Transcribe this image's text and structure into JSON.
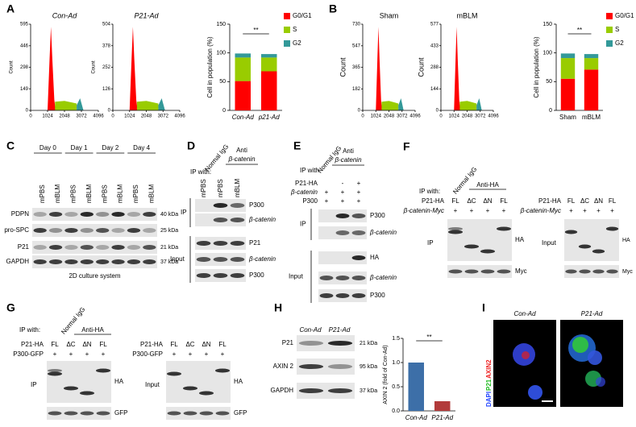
{
  "panels": {
    "A": {
      "label": "A",
      "histograms": [
        {
          "title": "Con-Ad",
          "ylabel": "Count",
          "ylim": [
            0,
            595
          ],
          "yticks": [
            0,
            149,
            298,
            446,
            595
          ],
          "xlim": [
            0,
            4096
          ],
          "xticks": [
            0,
            1024,
            2048,
            3072,
            4096
          ]
        },
        {
          "title": "P21-Ad",
          "ylabel": "Count",
          "ylim": [
            0,
            504
          ],
          "yticks": [
            0,
            126,
            252,
            378,
            504
          ],
          "xlim": [
            0,
            4096
          ],
          "xticks": [
            0,
            1024,
            2048,
            3072,
            4096
          ]
        }
      ],
      "bar": {
        "type": "bar",
        "ylabel": "Cell in population (%)",
        "categories": [
          "Con-Ad",
          "p21-Ad"
        ],
        "series": [
          {
            "name": "G0/G1",
            "color": "#ff0000",
            "values": [
              51,
              68
            ]
          },
          {
            "name": "S",
            "color": "#99cc00",
            "values": [
              41,
              24
            ]
          },
          {
            "name": "G2",
            "color": "#339999",
            "values": [
              7,
              6
            ]
          }
        ],
        "ylim": [
          0,
          150
        ],
        "yticks": [
          0,
          50,
          100,
          150
        ],
        "significance": "**"
      }
    },
    "B": {
      "label": "B",
      "histograms": [
        {
          "title": "Sham",
          "ylabel": "Count",
          "ylim": [
            0,
            730
          ],
          "yticks": [
            0,
            182,
            365,
            547,
            730
          ],
          "xlim": [
            0,
            4096
          ],
          "xticks": [
            0,
            1024,
            2048,
            3072,
            4096
          ]
        },
        {
          "title": "mBLM",
          "ylabel": "Count",
          "ylim": [
            0,
            577
          ],
          "yticks": [
            0,
            144,
            288,
            433,
            577
          ],
          "xlim": [
            0,
            4096
          ],
          "xticks": [
            0,
            1024,
            2048,
            3072,
            4096
          ]
        }
      ],
      "bar": {
        "type": "bar",
        "ylabel": "Cell in population (%)",
        "categories": [
          "Sham",
          "mBLM"
        ],
        "series": [
          {
            "name": "G0/G1",
            "color": "#ff0000",
            "values": [
              55,
              71
            ]
          },
          {
            "name": "S",
            "color": "#99cc00",
            "values": [
              36,
              20
            ]
          },
          {
            "name": "G2",
            "color": "#339999",
            "values": [
              8,
              7
            ]
          }
        ],
        "ylim": [
          0,
          150
        ],
        "yticks": [
          0,
          50,
          100,
          150
        ],
        "significance": "**"
      }
    },
    "C": {
      "label": "C",
      "days": [
        "Day 0",
        "Day 1",
        "Day 2",
        "Day 4"
      ],
      "lanes": [
        "mPBS",
        "mBLM",
        "mPBS",
        "mBLM",
        "mPBS",
        "mBLM",
        "mPBS",
        "mBLM"
      ],
      "rows": [
        {
          "name": "PDPN",
          "size": "40 kDa"
        },
        {
          "name": "pro-SPC",
          "size": "25 kDa"
        },
        {
          "name": "P21",
          "size": "21 kDa"
        },
        {
          "name": "GAPDH",
          "size": "37 kDa"
        }
      ],
      "caption": "2D culture system"
    },
    "D": {
      "label": "D",
      "ip_with": "IP with:",
      "control": "Normal IgG",
      "antibody": [
        "Anti",
        "β-catenin"
      ],
      "lanes": [
        "mPBS",
        "mPBS",
        "mBLM"
      ],
      "groups": [
        {
          "name": "IP",
          "rows": [
            "P300",
            "β-catenin"
          ]
        },
        {
          "name": "Input",
          "rows": [
            "P21",
            "β-catenin",
            "P300"
          ]
        }
      ]
    },
    "E": {
      "label": "E",
      "ip_with": "IP with:",
      "control": "Normal IgG",
      "antibody": [
        "Anti",
        "β-catenin"
      ],
      "conditions": [
        {
          "name": "P21-HA",
          "marks": [
            "-",
            "+"
          ]
        },
        {
          "name": "β-catenin",
          "marks": [
            "+",
            "+",
            "+"
          ]
        },
        {
          "name": "P300",
          "marks": [
            "+",
            "+",
            "+"
          ]
        }
      ],
      "groups": [
        {
          "name": "IP",
          "rows": [
            "P300",
            "β-catenin"
          ]
        },
        {
          "name": "Input",
          "rows": [
            "HA",
            "β-catenin",
            "P300"
          ]
        }
      ]
    },
    "F": {
      "label": "F",
      "ip_with": "IP with:",
      "control": "Normal IgG",
      "antibody": "Anti-HA",
      "blots": [
        {
          "conditions": [
            {
              "name": "P21-HA",
              "marks": [
                "FL",
                "ΔC",
                "ΔN",
                "FL"
              ]
            },
            {
              "name": "β-catenin-Myc",
              "marks": [
                "+",
                "+",
                "+",
                "+"
              ]
            }
          ],
          "group": "IP",
          "rows": [
            "HA",
            "Myc"
          ]
        },
        {
          "conditions": [
            {
              "name": "P21-HA",
              "marks": [
                "FL",
                "ΔC",
                "ΔN",
                "FL"
              ]
            },
            {
              "name": "β-catenin-Myc",
              "marks": [
                "+",
                "+",
                "+",
                "+"
              ]
            }
          ],
          "group": "Input",
          "rows": [
            "HA",
            "Myc"
          ]
        }
      ]
    },
    "G": {
      "label": "G",
      "ip_with": "IP with:",
      "control": "Normal IgG",
      "antibody": "Anti-HA",
      "blots": [
        {
          "conditions": [
            {
              "name": "P21-HA",
              "marks": [
                "FL",
                "ΔC",
                "ΔN",
                "FL"
              ]
            },
            {
              "name": "P300-GFP",
              "marks": [
                "+",
                "+",
                "+",
                "+"
              ]
            }
          ],
          "group": "IP",
          "rows": [
            "HA",
            "GFP"
          ]
        },
        {
          "conditions": [
            {
              "name": "P21-HA",
              "marks": [
                "FL",
                "ΔC",
                "ΔN",
                "FL"
              ]
            },
            {
              "name": "P300-GFP",
              "marks": [
                "+",
                "+",
                "+",
                "+"
              ]
            }
          ],
          "group": "Input",
          "rows": [
            "HA",
            "GFP"
          ]
        }
      ]
    },
    "H": {
      "label": "H",
      "lanes": [
        "Con-Ad",
        "P21-Ad"
      ],
      "rows": [
        {
          "name": "P21",
          "size": "21 kDa"
        },
        {
          "name": "AXIN 2",
          "size": "95 kDa"
        },
        {
          "name": "GAPDH",
          "size": "37 kDa"
        }
      ],
      "bar": {
        "type": "bar",
        "ylabel": "AXIN 2 (fold of Con-Ad)",
        "categories": [
          "Con-Ad",
          "P21-Ad"
        ],
        "values": [
          1,
          0.2
        ],
        "colors": [
          "#3d6fa8",
          "#b23b3b"
        ],
        "ylim": [
          0,
          1.5
        ],
        "yticks": [
          {
            "value": 0,
            "label": "0.0"
          },
          0.5,
          {
            "value": 1,
            "label": "1.0"
          },
          1.5
        ],
        "significance": "**"
      }
    },
    "I": {
      "label": "I",
      "columns": [
        "Con-Ad",
        "P21-Ad"
      ],
      "stains": [
        {
          "name": "DAPI",
          "color": "#2244ff"
        },
        {
          "name": "P21",
          "color": "#22bb22"
        },
        {
          "name": "AXIN2",
          "color": "#ee2222"
        }
      ]
    }
  }
}
